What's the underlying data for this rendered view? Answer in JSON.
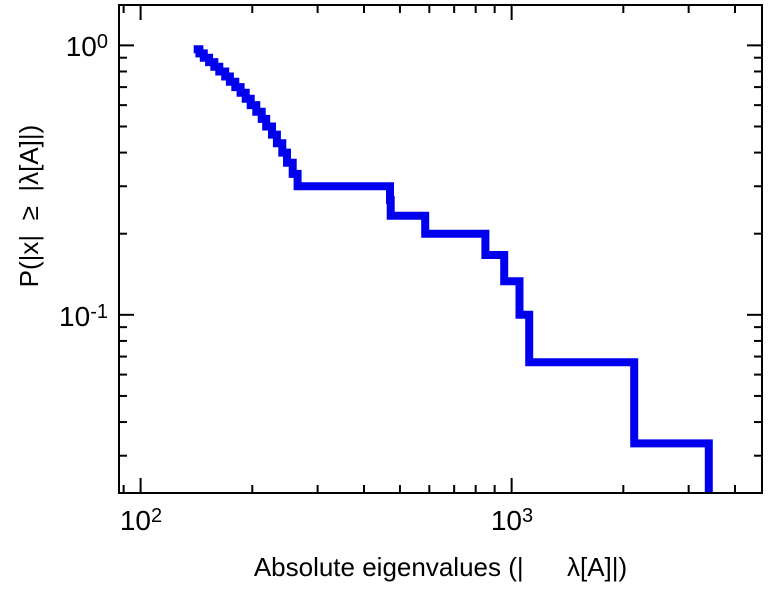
{
  "figure": {
    "x_axis": {
      "label": "Absolute eigenvalues (|      λ[A]|)",
      "ticks": [
        {
          "base": "10",
          "exp": "2"
        },
        {
          "base": "10",
          "exp": "3"
        }
      ]
    },
    "y_axis": {
      "label": "P(|x|  ≥  |λ[A]|)",
      "ticks": [
        {
          "base": "10",
          "exp": "0"
        },
        {
          "base": "10",
          "exp": "-1"
        }
      ]
    }
  },
  "chart_data": {
    "type": "line",
    "style": "ccdf-staircase",
    "title": "",
    "xlabel": "Absolute eigenvalues (|λ[A]|)",
    "ylabel": "P(|x| ≥ |λ[A]|)",
    "xscale": "log",
    "yscale": "log",
    "xlim": [
      88,
      4700
    ],
    "ylim": [
      0.022,
      1.4
    ],
    "grid": false,
    "legend": "none",
    "n": 30,
    "eigenvalues": [
      139,
      144,
      148,
      153,
      158,
      163,
      169,
      174,
      180,
      186,
      192,
      198,
      205,
      212,
      218,
      226,
      233,
      241,
      248,
      257,
      265,
      470,
      472,
      585,
      850,
      955,
      1050,
      1115,
      2140,
      3400
    ],
    "line_color": "#0000ee",
    "line_width": 8,
    "x_major_ticks": [
      100,
      1000
    ],
    "x_minor_ticks": [
      90,
      200,
      300,
      400,
      500,
      600,
      700,
      800,
      900,
      2000,
      3000,
      4000
    ],
    "y_major_ticks": [
      1,
      0.1
    ],
    "y_minor_ticks": [
      0.9,
      0.8,
      0.7,
      0.6,
      0.5,
      0.4,
      0.3,
      0.2,
      0.09,
      0.08,
      0.07,
      0.06,
      0.05,
      0.04,
      0.03
    ]
  }
}
